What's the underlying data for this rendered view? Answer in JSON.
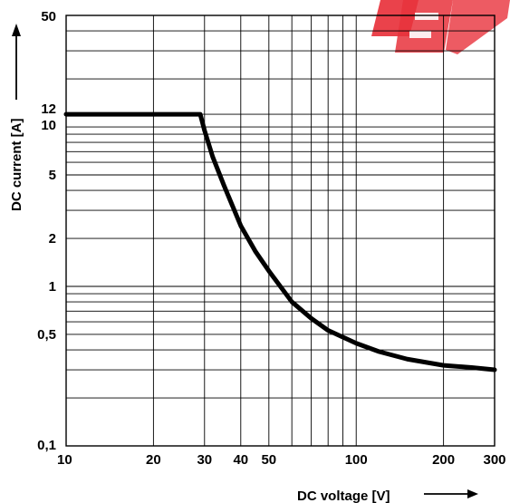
{
  "chart_data": {
    "type": "line",
    "xlabel": "DC voltage [V]",
    "ylabel": "DC current [A]",
    "xscale": "log",
    "yscale": "log",
    "xlim": [
      10,
      300
    ],
    "ylim": [
      0.1,
      50
    ],
    "grid": true,
    "x_ticks": [
      {
        "value": 10,
        "label": "10"
      },
      {
        "value": 20,
        "label": "20"
      },
      {
        "value": 30,
        "label": "30"
      },
      {
        "value": 40,
        "label": "40"
      },
      {
        "value": 50,
        "label": "50"
      },
      {
        "value": 100,
        "label": "100"
      },
      {
        "value": 200,
        "label": "200"
      },
      {
        "value": 300,
        "label": "300"
      }
    ],
    "y_ticks": [
      {
        "value": 0.1,
        "label": "0,1"
      },
      {
        "value": 0.5,
        "label": "0,5"
      },
      {
        "value": 1,
        "label": "1"
      },
      {
        "value": 2,
        "label": "2"
      },
      {
        "value": 5,
        "label": "5"
      },
      {
        "value": 10,
        "label": "10"
      },
      {
        "value": 12,
        "label": "12"
      },
      {
        "value": 50,
        "label": "50"
      }
    ],
    "series": [
      {
        "x": [
          10,
          29,
          30,
          32,
          35,
          40,
          45,
          50,
          60,
          70,
          80,
          100,
          120,
          150,
          200,
          250,
          300
        ],
        "y": [
          12,
          12,
          9.5,
          6.5,
          4.3,
          2.4,
          1.65,
          1.25,
          0.8,
          0.63,
          0.53,
          0.44,
          0.39,
          0.35,
          0.32,
          0.31,
          0.3
        ]
      }
    ],
    "colors": {
      "line": "#000000",
      "grid": "#000000",
      "watermark": "#e8323c"
    }
  }
}
